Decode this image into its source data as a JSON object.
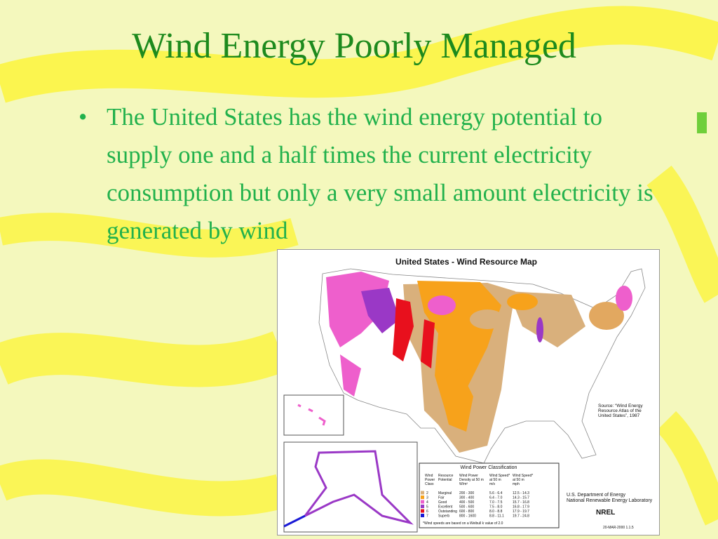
{
  "title": "Wind Energy Poorly Managed",
  "bullets": [
    "The United States has the wind energy potential to supply one and a half times the current electricity consumption but only a very small amount electricity is generated by wind"
  ],
  "map": {
    "title": "United States - Wind Resource Map",
    "source": [
      "Source:  “Wind Energy",
      "Resource Atlas of the",
      "United States”, 1987"
    ],
    "legend": {
      "title": "Wind Power Classification",
      "headers": [
        [
          "Wind",
          "Power",
          "Class"
        ],
        [
          "Resource",
          "Potential"
        ],
        [
          "Wind Power",
          "Density at 50 m",
          "W/m²"
        ],
        [
          "Wind Speed*",
          "at 50 m",
          "m/s"
        ],
        [
          "Wind Speed*",
          "at 50 m",
          "mph"
        ]
      ],
      "rows": [
        [
          "2",
          "Marginal",
          "200 - 300",
          "5.6 - 6.4",
          "12.5 - 14.3"
        ],
        [
          "3",
          "Fair",
          "300 - 400",
          "6.4 - 7.0",
          "14.3 - 15.7"
        ],
        [
          "4",
          "Good",
          "400 - 500",
          "7.0 - 7.5",
          "15.7 - 16.8"
        ],
        [
          "5",
          "Excellent",
          "500 - 600",
          "7.5 - 8.0",
          "16.8 - 17.9"
        ],
        [
          "6",
          "Outstanding",
          "600 - 800",
          "8.0 - 8.8",
          "17.9 - 19.7"
        ],
        [
          "7",
          "Superb",
          "800 - 1600",
          "8.8 - 11.1",
          "19.7 - 24.8"
        ]
      ],
      "footnote": "*Wind speeds are based on a Weibull k value of 2.0"
    },
    "agency": [
      "U.S. Department of Energy",
      "National Renewable Energy Laboratory"
    ],
    "logo": "NREL",
    "date": "20-MAR-2000 1.1.5"
  }
}
